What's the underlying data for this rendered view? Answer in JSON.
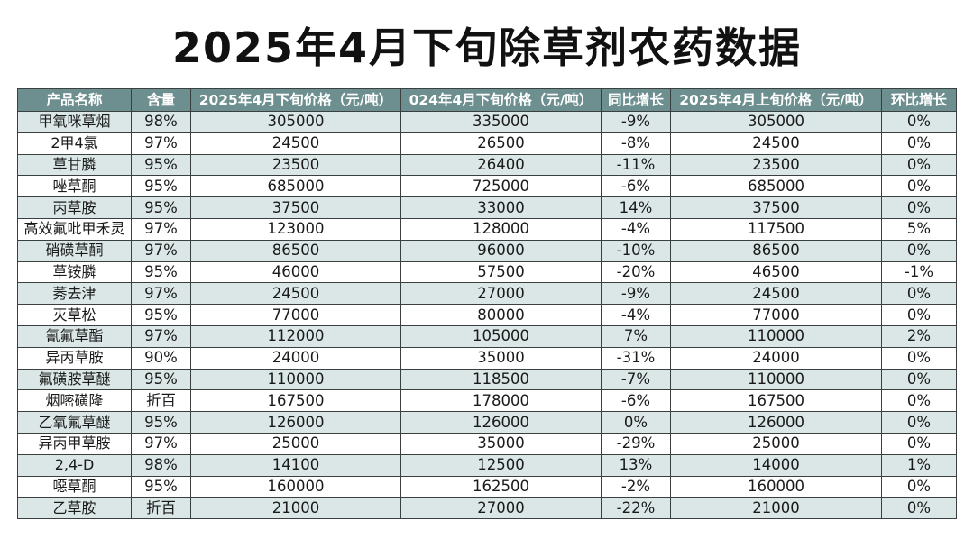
{
  "title": "2025年4月下旬除草剂农药数据",
  "table": {
    "headers": [
      "产品名称",
      "含量",
      "2025年4月下旬价格（元/吨）",
      "024年4月下旬价格（元/吨）",
      "同比增长",
      "2025年4月上旬价格（元/吨）",
      "环比增长"
    ],
    "rows": [
      [
        "甲氧咪草烟",
        "98%",
        "305000",
        "335000",
        "-9%",
        "305000",
        "0%"
      ],
      [
        "2甲4氯",
        "97%",
        "24500",
        "26500",
        "-8%",
        "24500",
        "0%"
      ],
      [
        "草甘膦",
        "95%",
        "23500",
        "26400",
        "-11%",
        "23500",
        "0%"
      ],
      [
        "唑草酮",
        "95%",
        "685000",
        "725000",
        "-6%",
        "685000",
        "0%"
      ],
      [
        "丙草胺",
        "95%",
        "37500",
        "33000",
        "14%",
        "37500",
        "0%"
      ],
      [
        "高效氟吡甲禾灵",
        "97%",
        "123000",
        "128000",
        "-4%",
        "117500",
        "5%"
      ],
      [
        "硝磺草酮",
        "97%",
        "86500",
        "96000",
        "-10%",
        "86500",
        "0%"
      ],
      [
        "草铵膦",
        "95%",
        "46000",
        "57500",
        "-20%",
        "46500",
        "-1%"
      ],
      [
        "莠去津",
        "97%",
        "24500",
        "27000",
        "-9%",
        "24500",
        "0%"
      ],
      [
        "灭草松",
        "95%",
        "77000",
        "80000",
        "-4%",
        "77000",
        "0%"
      ],
      [
        "氰氟草酯",
        "97%",
        "112000",
        "105000",
        "7%",
        "110000",
        "2%"
      ],
      [
        "异丙草胺",
        "90%",
        "24000",
        "35000",
        "-31%",
        "24000",
        "0%"
      ],
      [
        "氟磺胺草醚",
        "95%",
        "110000",
        "118500",
        "-7%",
        "110000",
        "0%"
      ],
      [
        "烟嘧磺隆",
        "折百",
        "167500",
        "178000",
        "-6%",
        "167500",
        "0%"
      ],
      [
        "乙氧氟草醚",
        "95%",
        "126000",
        "126000",
        "0%",
        "126000",
        "0%"
      ],
      [
        "异丙甲草胺",
        "97%",
        "25000",
        "35000",
        "-29%",
        "25000",
        "0%"
      ],
      [
        "2,4-D",
        "98%",
        "14100",
        "12500",
        "13%",
        "14000",
        "1%"
      ],
      [
        "噁草酮",
        "95%",
        "160000",
        "162500",
        "-2%",
        "160000",
        "0%"
      ],
      [
        "乙草胺",
        "折百",
        "21000",
        "27000",
        "-22%",
        "21000",
        "0%"
      ]
    ]
  },
  "colors": {
    "header_bg": "#6e8f8f",
    "row_stripe": "#dbe7e7",
    "border": "#3a3f3f"
  }
}
